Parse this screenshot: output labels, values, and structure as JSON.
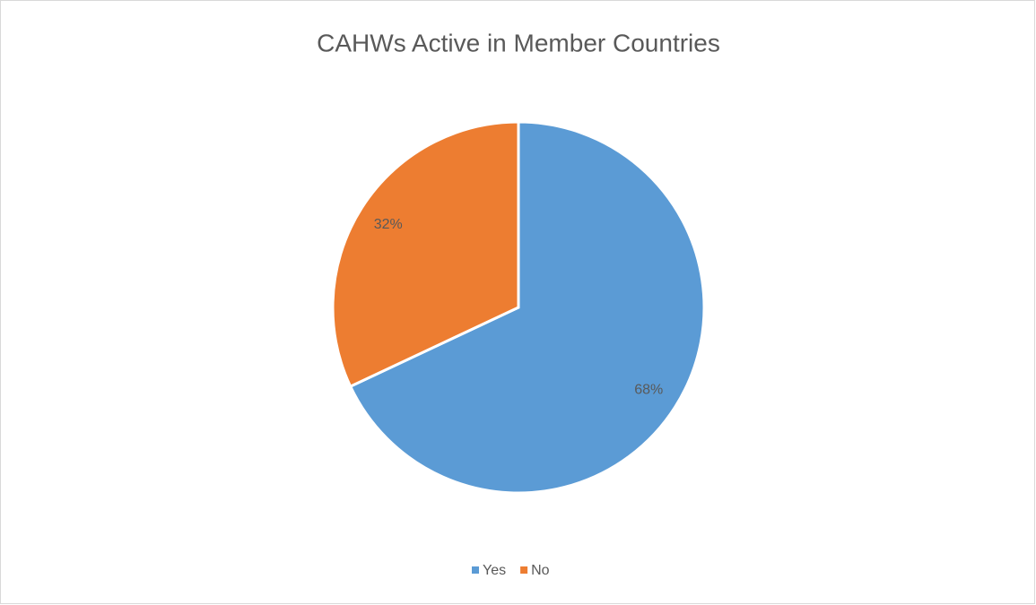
{
  "chart_data": {
    "type": "pie",
    "title": "CAHWs Active in Member Countries",
    "categories": [
      "Yes",
      "No"
    ],
    "values": [
      68,
      32
    ],
    "value_labels": [
      "68%",
      "32%"
    ],
    "colors": [
      "#5b9bd5",
      "#ed7d31"
    ],
    "legend": "bottom"
  }
}
